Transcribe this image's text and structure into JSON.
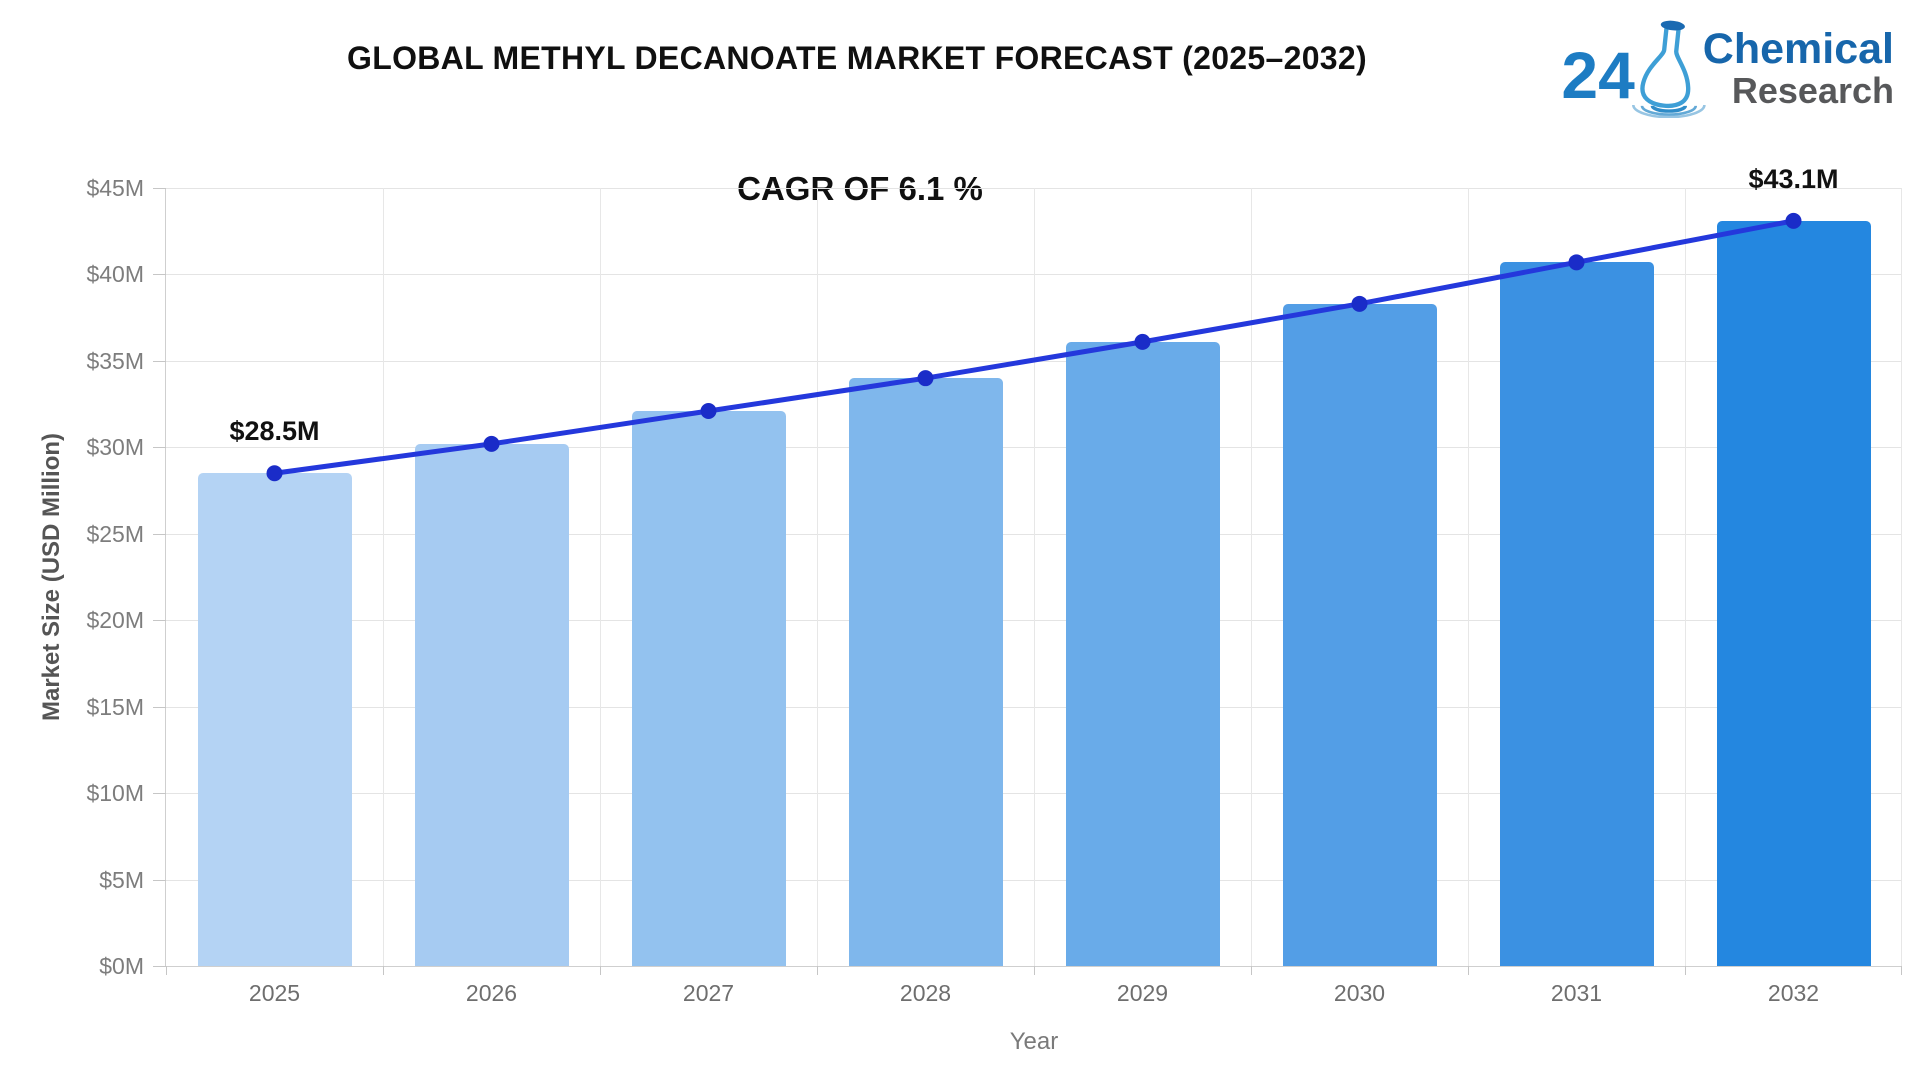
{
  "header": {
    "title": "GLOBAL METHYL DECANOATE MARKET FORECAST (2025–2032)"
  },
  "logo": {
    "number": "24",
    "flask": "flask-icon",
    "line1": "Chemical",
    "line2": "Research"
  },
  "chart_data": {
    "type": "bar",
    "title": "GLOBAL METHYL DECANOATE MARKET FORECAST (2025–2032)",
    "annotation": "CAGR OF 6.1 %",
    "xlabel": "Year",
    "ylabel": "Market Size (USD Million)",
    "categories": [
      "2025",
      "2026",
      "2027",
      "2028",
      "2029",
      "2030",
      "2031",
      "2032"
    ],
    "values": [
      28.5,
      30.2,
      32.1,
      34.0,
      36.1,
      38.3,
      40.7,
      43.1
    ],
    "line_overlay_values": [
      28.5,
      30.2,
      32.1,
      34.0,
      36.1,
      38.3,
      40.7,
      43.1
    ],
    "data_labels": {
      "2025": "$28.5M",
      "2032": "$43.1M"
    },
    "ylim": [
      0,
      45
    ],
    "grid": true,
    "legend": "none",
    "y_ticks": [
      {
        "value": 0,
        "label": "$0M"
      },
      {
        "value": 5,
        "label": "$5M"
      },
      {
        "value": 10,
        "label": "$10M"
      },
      {
        "value": 15,
        "label": "$15M"
      },
      {
        "value": 20,
        "label": "$20M"
      },
      {
        "value": 25,
        "label": "$25M"
      },
      {
        "value": 30,
        "label": "$30M"
      },
      {
        "value": 35,
        "label": "$35M"
      },
      {
        "value": 40,
        "label": "$40M"
      },
      {
        "value": 45,
        "label": "$45M"
      }
    ],
    "bar_colors": [
      "#b4d3f4",
      "#a6cbf2",
      "#93c2ef",
      "#7fb7ec",
      "#69abe9",
      "#539ee6",
      "#3b91e2",
      "#2487e0"
    ],
    "line_color": "#2438dc",
    "dot_color": "#1a2cc8"
  }
}
